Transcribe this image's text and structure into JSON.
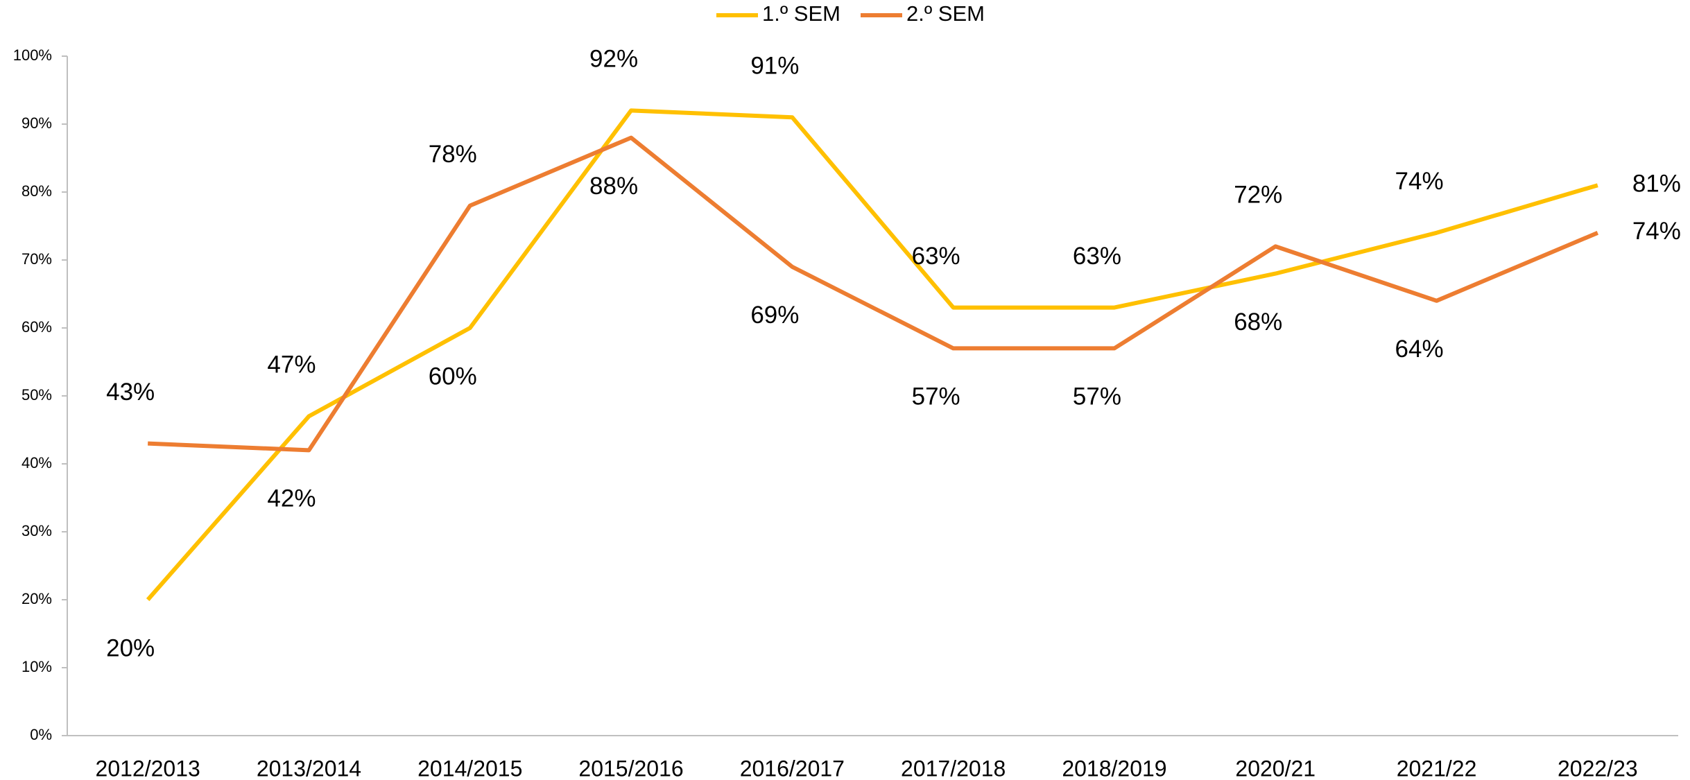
{
  "chart_data": {
    "type": "line",
    "categories": [
      "2012/2013",
      "2013/2014",
      "2014/2015",
      "2015/2016",
      "2016/2017",
      "2017/2018",
      "2018/2019",
      "2020/21",
      "2021/22",
      "2022/23"
    ],
    "series": [
      {
        "name": "1.º SEM",
        "color": "#FFC000",
        "values": [
          20,
          47,
          60,
          92,
          91,
          63,
          63,
          68,
          74,
          81
        ],
        "value_labels": [
          "20%",
          "47%",
          "60%",
          "92%",
          "91%",
          "63%",
          "63%",
          "68%",
          "74%",
          "81%"
        ]
      },
      {
        "name": "2.º SEM",
        "color": "#ED7D31",
        "values": [
          43,
          42,
          78,
          88,
          69,
          57,
          57,
          72,
          64,
          74
        ],
        "value_labels": [
          "43%",
          "42%",
          "78%",
          "88%",
          "69%",
          "57%",
          "57%",
          "72%",
          "64%",
          "74%"
        ]
      }
    ],
    "ylim": [
      0,
      100
    ],
    "yticks": [
      {
        "value": 0,
        "label": "0%"
      },
      {
        "value": 10,
        "label": "10%"
      },
      {
        "value": 20,
        "label": "20%"
      },
      {
        "value": 30,
        "label": "30%"
      },
      {
        "value": 40,
        "label": "40%"
      },
      {
        "value": 50,
        "label": "50%"
      },
      {
        "value": 60,
        "label": "60%"
      },
      {
        "value": 70,
        "label": "70%"
      },
      {
        "value": 80,
        "label": "80%"
      },
      {
        "value": 90,
        "label": "90%"
      },
      {
        "value": 100,
        "label": "100%"
      }
    ],
    "grid": false,
    "legend": "top"
  }
}
